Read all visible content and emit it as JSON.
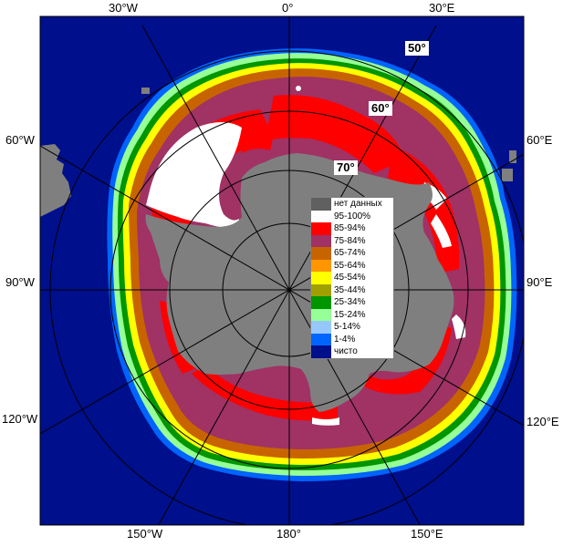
{
  "map": {
    "colors": {
      "ocean": "#000f8c",
      "land": "#7f7f7f",
      "frame": "#000000"
    },
    "lon_labels": {
      "top": [
        "30°W",
        "0°",
        "30°E"
      ],
      "left": [
        "60°W",
        "90°W",
        "120°W"
      ],
      "right": [
        "60°E",
        "90°E",
        "120°E"
      ],
      "bottom": [
        "150°W",
        "180°",
        "150°E"
      ]
    },
    "lat_labels": [
      "50°",
      "60°",
      "70°"
    ]
  },
  "legend": {
    "items": [
      {
        "label": "нет данных",
        "color": "#606060"
      },
      {
        "label": "95-100%",
        "color": "#ffffff"
      },
      {
        "label": "85-94%",
        "color": "#ff0000"
      },
      {
        "label": "75-84%",
        "color": "#a03264"
      },
      {
        "label": "65-74%",
        "color": "#c86400"
      },
      {
        "label": "55-64%",
        "color": "#ff9600"
      },
      {
        "label": "45-54%",
        "color": "#ffff00"
      },
      {
        "label": "35-44%",
        "color": "#a0a000"
      },
      {
        "label": "25-34%",
        "color": "#009600"
      },
      {
        "label": "15-24%",
        "color": "#96ff96"
      },
      {
        "label": "5-14%",
        "color": "#96c8ff"
      },
      {
        "label": "1-4%",
        "color": "#0064ff"
      },
      {
        "label": "чисто",
        "color": "#000f8c"
      }
    ]
  }
}
